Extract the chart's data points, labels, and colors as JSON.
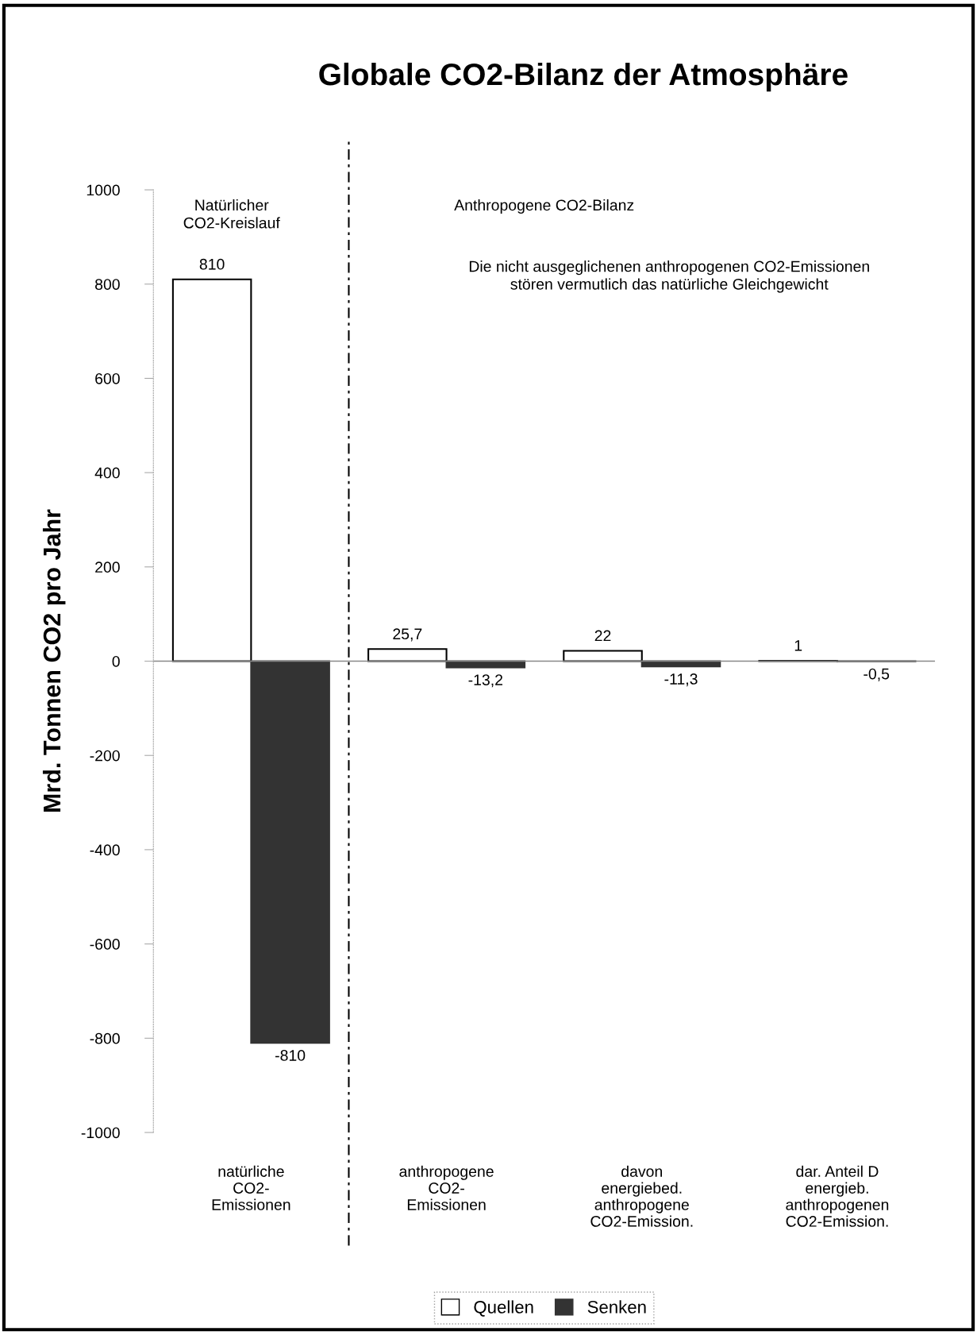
{
  "chart_data": {
    "type": "bar",
    "title": "Globale CO2-Bilanz der Atmosphäre",
    "ylabel": "Mrd. Tonnen CO2 pro Jahr",
    "categories": [
      "natürliche\nCO2-\nEmissionen",
      "anthropogene\nCO2-\nEmissionen",
      "davon\nenergiebed.\nanthropogene\nCO2-Emission.",
      "dar. Anteil D\nenergieb.\nanthropogenen\nCO2-Emission."
    ],
    "series": [
      {
        "name": "Quellen",
        "color": "#ffffff",
        "values": [
          810,
          25.7,
          22,
          1
        ],
        "value_labels": [
          "810",
          "25,7",
          "22",
          "1"
        ]
      },
      {
        "name": "Senken",
        "color": "#333333",
        "values": [
          -810,
          -13.2,
          -11.3,
          -0.5
        ],
        "value_labels": [
          "-810",
          "-13,2",
          "-11,3",
          "-0,5"
        ]
      }
    ],
    "ylim": [
      -1000,
      1000
    ],
    "yticks": [
      -1000,
      -800,
      -600,
      -400,
      -200,
      0,
      200,
      400,
      600,
      800,
      1000
    ],
    "annotations": [
      "Natürlicher\nCO2-Kreislauf",
      "Anthropogene CO2-Bilanz",
      "Die nicht ausgeglichenen anthropogenen CO2-Emissionen\nstören vermutlich das natürliche Gleichgewicht"
    ],
    "legend": "bottom"
  }
}
